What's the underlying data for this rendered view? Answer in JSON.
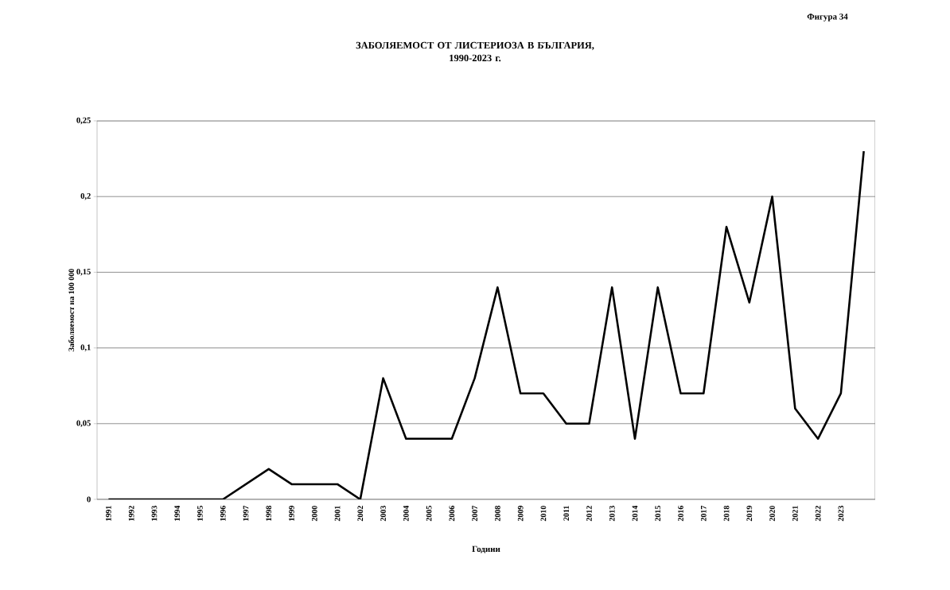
{
  "chart_data": {
    "type": "line",
    "title": "ЗАБОЛЯЕМОСТ  ОТ ЛИСТЕРИОЗА  В БЪЛГАРИЯ,\n1990-2023  г.",
    "xlabel": "Години",
    "ylabel": "Заболяемост на 100 000",
    "annotations": [
      "Фигура 34"
    ],
    "categories": [
      "1991",
      "1992",
      "1993",
      "1994",
      "1995",
      "1996",
      "1997",
      "1998",
      "1999",
      "2000",
      "2001",
      "2002",
      "2003",
      "2004",
      "2005",
      "2006",
      "2007",
      "2008",
      "2009",
      "2010",
      "2011",
      "2012",
      "2013",
      "2014",
      "2015",
      "2016",
      "2017",
      "2018",
      "2019",
      "2020",
      "2021",
      "2022",
      "2023",
      null
    ],
    "series": [
      {
        "color": "#000000",
        "values": [
          0,
          0,
          0,
          0,
          0,
          0,
          0.01,
          0.02,
          0.01,
          0.01,
          0.01,
          0,
          0.08,
          0.04,
          0.04,
          0.04,
          0.08,
          0.14,
          0.07,
          0.07,
          0.05,
          0.05,
          0.14,
          0.04,
          0.14,
          0.07,
          0.07,
          0.18,
          0.13,
          0.2,
          0.06,
          0.04,
          0.07,
          0.23
        ]
      }
    ],
    "ylim": [
      0,
      0.25
    ],
    "yticks": [
      {
        "value": 0,
        "label": "0"
      },
      {
        "value": 0.05,
        "label": "0,05"
      },
      {
        "value": 0.1,
        "label": "0,1"
      },
      {
        "value": 0.15,
        "label": "0,15"
      },
      {
        "value": 0.2,
        "label": "0,2"
      },
      {
        "value": 0.25,
        "label": "0,25"
      }
    ],
    "grid": "y",
    "marker": "none",
    "line_style": "solid"
  }
}
